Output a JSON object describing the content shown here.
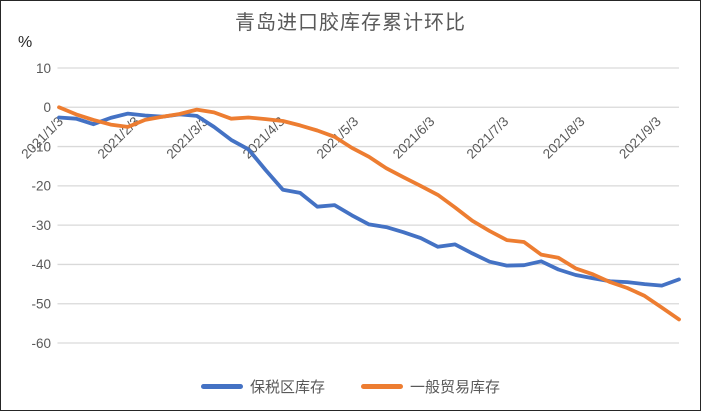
{
  "chart_data": {
    "type": "line",
    "title": "青岛进口胶库存累计环比",
    "ylabel": "%",
    "xlabel": "",
    "ylim": [
      -60,
      10
    ],
    "y_ticks": [
      10,
      0,
      -10,
      -20,
      -30,
      -40,
      -50,
      -60
    ],
    "x_tick_labels": [
      "2021/1/3",
      "2021/2/3",
      "2021/3/3",
      "2021/4/3",
      "2021/5/3",
      "2021/6/3",
      "2021/7/3",
      "2021/8/3",
      "2021/9/3"
    ],
    "x": [
      "2021/1/3",
      "2021/1/10",
      "2021/1/17",
      "2021/1/24",
      "2021/1/31",
      "2021/2/7",
      "2021/2/14",
      "2021/2/21",
      "2021/2/28",
      "2021/3/7",
      "2021/3/14",
      "2021/3/21",
      "2021/3/28",
      "2021/4/4",
      "2021/4/11",
      "2021/4/18",
      "2021/4/25",
      "2021/5/2",
      "2021/5/9",
      "2021/5/16",
      "2021/5/23",
      "2021/5/30",
      "2021/6/6",
      "2021/6/13",
      "2021/6/20",
      "2021/6/27",
      "2021/7/4",
      "2021/7/11",
      "2021/7/18",
      "2021/7/25",
      "2021/8/1",
      "2021/8/8",
      "2021/8/15",
      "2021/8/22",
      "2021/8/29",
      "2021/9/5",
      "2021/9/12"
    ],
    "series": [
      {
        "name": "保税区库存",
        "color": "#4472C4",
        "values": [
          -2.6,
          -2.9,
          -4.3,
          -2.7,
          -1.6,
          -2.1,
          -2.4,
          -1.8,
          -2.2,
          -5.0,
          -8.3,
          -10.7,
          -16.0,
          -21.0,
          -21.8,
          -25.3,
          -24.9,
          -27.5,
          -29.8,
          -30.5,
          -31.8,
          -33.3,
          -35.5,
          -34.9,
          -37.2,
          -39.3,
          -40.3,
          -40.2,
          -39.2,
          -41.3,
          -42.7,
          -43.5,
          -44.3,
          -44.5,
          -45.0,
          -45.4,
          -43.8
        ]
      },
      {
        "name": "一般贸易库存",
        "color": "#ED7D31",
        "values": [
          0.0,
          -1.8,
          -3.2,
          -4.4,
          -5.0,
          -3.2,
          -2.4,
          -1.7,
          -0.6,
          -1.3,
          -2.9,
          -2.6,
          -3.0,
          -3.5,
          -4.6,
          -5.9,
          -7.5,
          -10.3,
          -12.6,
          -15.5,
          -17.8,
          -20.0,
          -22.3,
          -25.5,
          -28.9,
          -31.5,
          -33.8,
          -34.3,
          -37.5,
          -38.3,
          -41.0,
          -42.5,
          -44.5,
          -46.0,
          -48.0,
          -51.0,
          -54.0
        ]
      }
    ],
    "grid": true,
    "legend_position": "bottom",
    "gridline_color": "#D9D9D9",
    "text_color": "#595959"
  }
}
